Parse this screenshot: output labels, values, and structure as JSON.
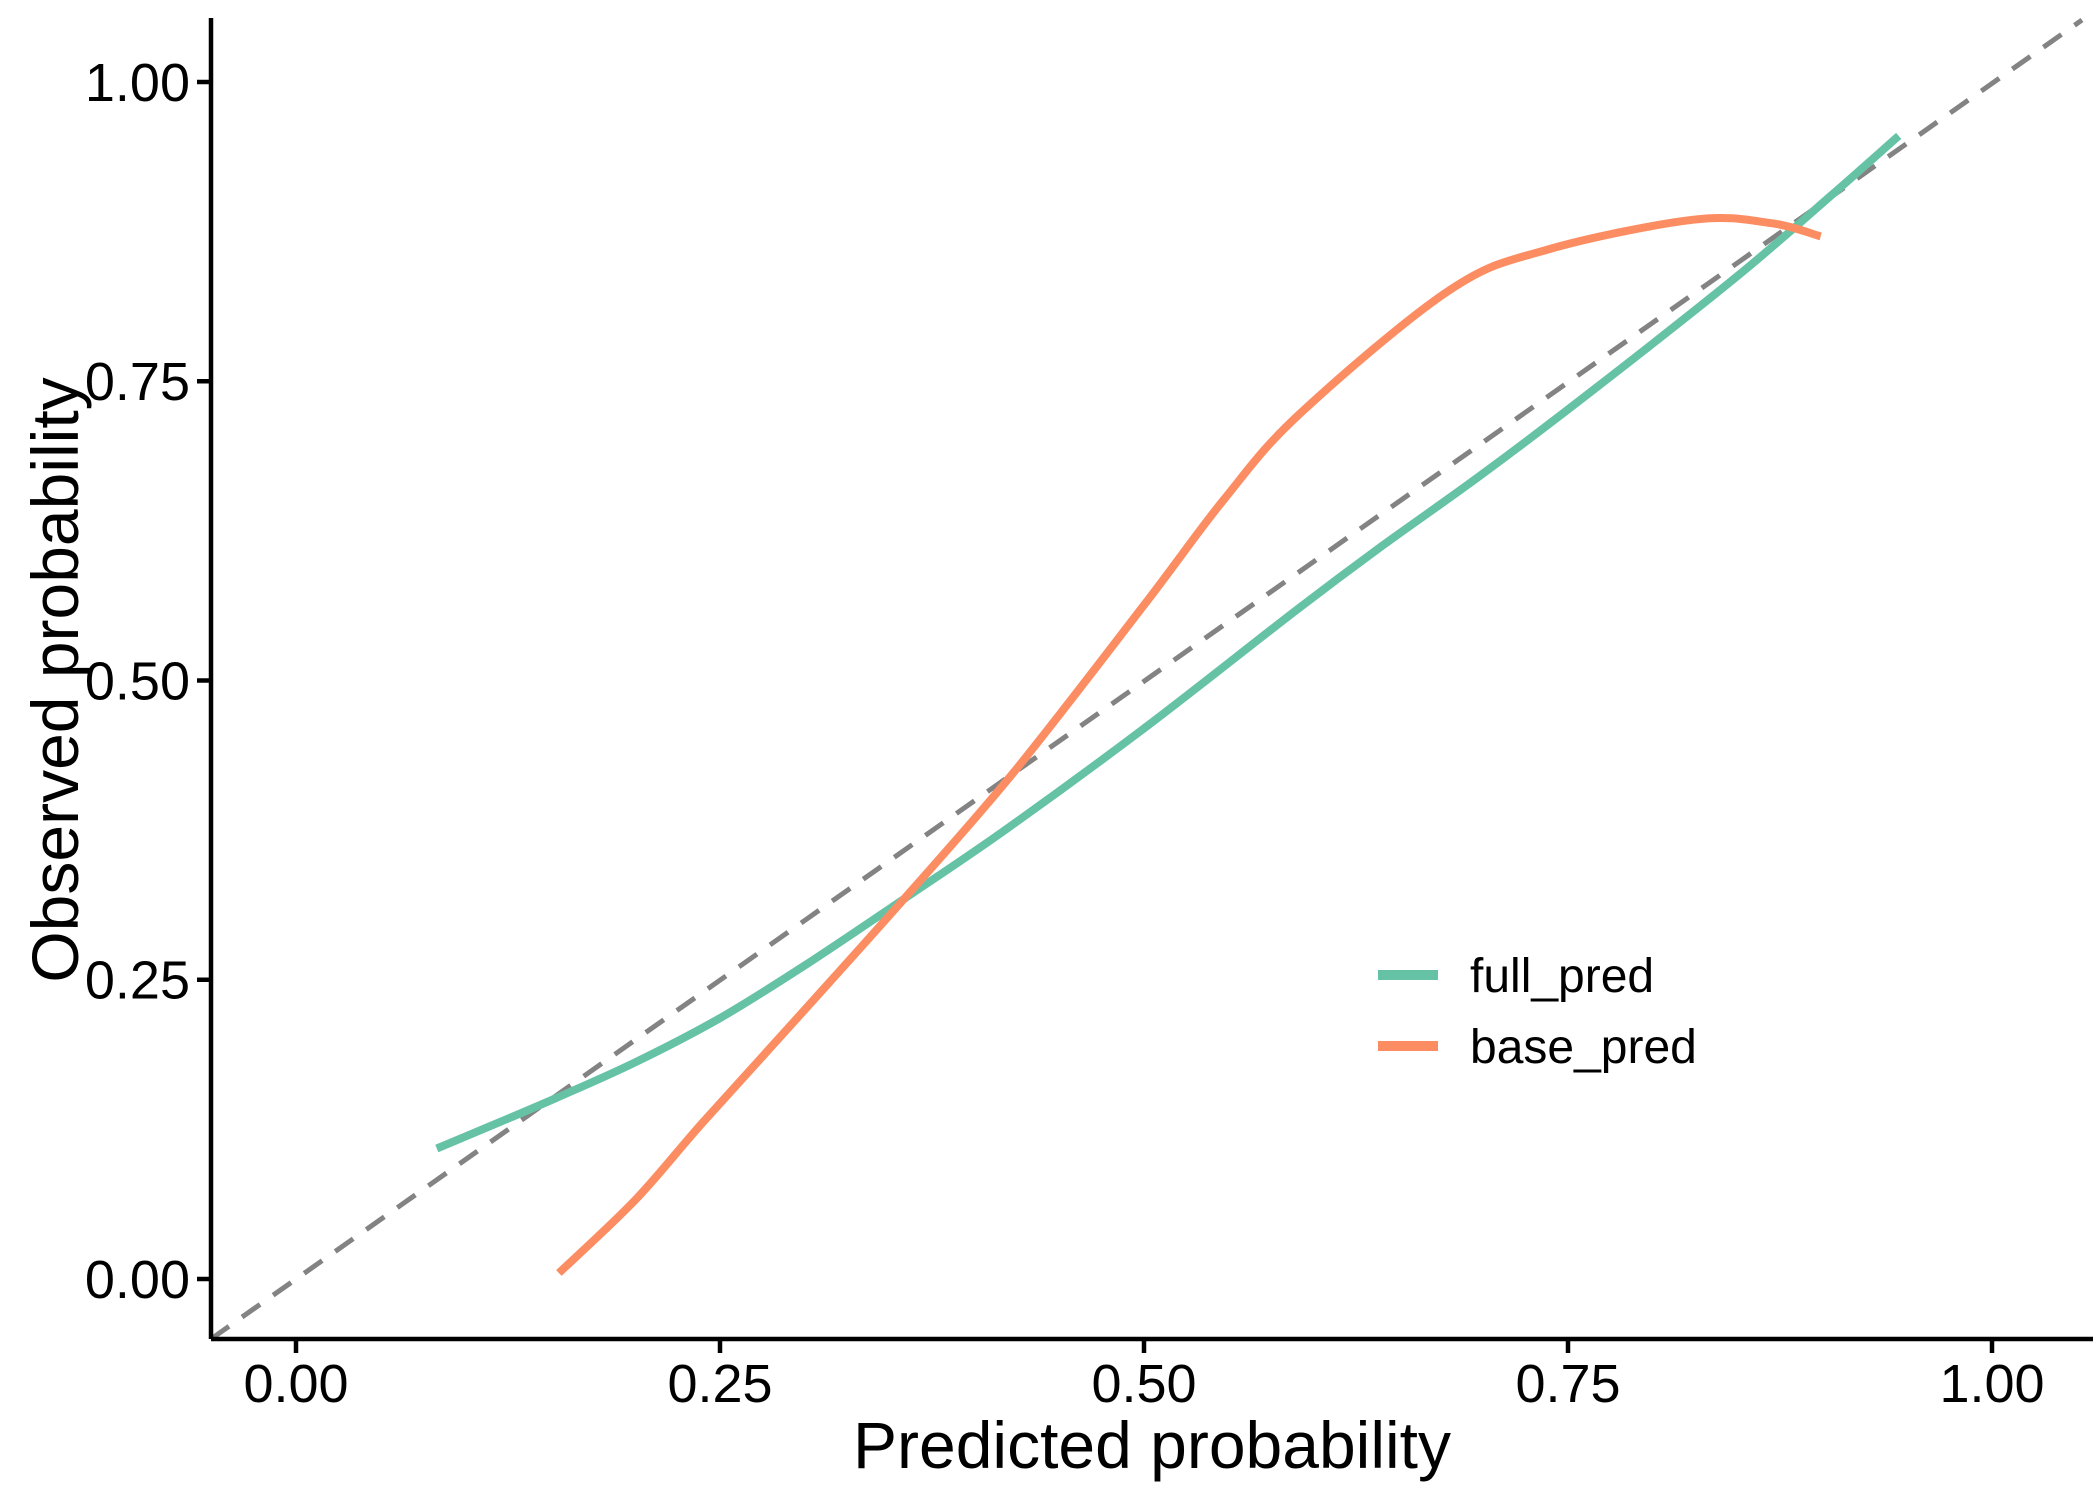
{
  "figure": {
    "background_color": "#ffffff",
    "axis_color": "#000000",
    "text_color": "#000000"
  },
  "chart_data": {
    "type": "line",
    "title": "",
    "xlabel": "Predicted probability",
    "ylabel": "Observed probability",
    "xlim": [
      -0.05,
      1.06
    ],
    "ylim": [
      -0.05,
      1.05
    ],
    "x_ticks": [
      0.0,
      0.25,
      0.5,
      0.75,
      1.0
    ],
    "y_ticks": [
      0.0,
      0.25,
      0.5,
      0.75,
      1.0
    ],
    "x_tick_labels": [
      "0.00",
      "0.25",
      "0.50",
      "0.75",
      "1.00"
    ],
    "y_tick_labels": [
      "0.00",
      "0.25",
      "0.50",
      "0.75",
      "1.00"
    ],
    "grid": false,
    "legend_position": "inside-right",
    "reference_line": {
      "type": "identity",
      "label": "y = x",
      "style": "dashed",
      "color": "#838383"
    },
    "series": [
      {
        "name": "full_pred",
        "color": "#66C2A5",
        "points": [
          [
            0.083,
            0.109
          ],
          [
            0.12,
            0.131
          ],
          [
            0.153,
            0.151
          ],
          [
            0.2,
            0.181
          ],
          [
            0.25,
            0.218
          ],
          [
            0.3,
            0.262
          ],
          [
            0.36,
            0.319
          ],
          [
            0.42,
            0.377
          ],
          [
            0.5,
            0.46
          ],
          [
            0.59,
            0.559
          ],
          [
            0.64,
            0.612
          ],
          [
            0.7,
            0.673
          ],
          [
            0.767,
            0.745
          ],
          [
            0.85,
            0.838
          ],
          [
            0.905,
            0.905
          ],
          [
            0.945,
            0.955
          ]
        ]
      },
      {
        "name": "base_pred",
        "color": "#FC8D62",
        "points": [
          [
            0.155,
            0.005
          ],
          [
            0.2,
            0.066
          ],
          [
            0.24,
            0.131
          ],
          [
            0.3,
            0.225
          ],
          [
            0.36,
            0.32
          ],
          [
            0.423,
            0.423
          ],
          [
            0.5,
            0.563
          ],
          [
            0.547,
            0.651
          ],
          [
            0.592,
            0.723
          ],
          [
            0.68,
            0.826
          ],
          [
            0.738,
            0.86
          ],
          [
            0.824,
            0.885
          ],
          [
            0.87,
            0.882
          ],
          [
            0.899,
            0.871
          ]
        ]
      }
    ]
  },
  "legend": {
    "items": [
      {
        "label": "full_pred",
        "color": "#66C2A5"
      },
      {
        "label": "base_pred",
        "color": "#FC8D62"
      }
    ]
  }
}
